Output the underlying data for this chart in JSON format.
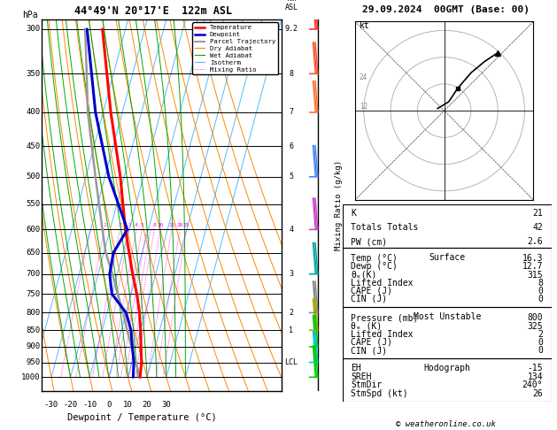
{
  "title_left": "44°49'N 20°17'E  122m ASL",
  "title_right": "29.09.2024  00GMT (Base: 00)",
  "xlabel": "Dewpoint / Temperature (°C)",
  "pressure_levels": [
    300,
    350,
    400,
    450,
    500,
    550,
    600,
    650,
    700,
    750,
    800,
    850,
    900,
    950,
    1000
  ],
  "temp_profile": {
    "pressure": [
      1000,
      950,
      900,
      850,
      800,
      750,
      700,
      600,
      500,
      400,
      300
    ],
    "temp": [
      16.3,
      15.0,
      12.5,
      10.0,
      7.0,
      3.0,
      -2.0,
      -12.0,
      -22.0,
      -36.0,
      -52.0
    ],
    "color": "#ff0000",
    "linewidth": 2.2
  },
  "dewp_profile": {
    "pressure": [
      1000,
      950,
      900,
      850,
      800,
      750,
      700,
      650,
      600,
      500,
      400,
      300
    ],
    "temp": [
      12.7,
      11.0,
      8.0,
      5.0,
      0.0,
      -10.0,
      -14.0,
      -15.0,
      -11.0,
      -28.0,
      -44.0,
      -60.0
    ],
    "color": "#0000cc",
    "linewidth": 2.2
  },
  "parcel_profile": {
    "pressure": [
      1000,
      950,
      900,
      850,
      800,
      750,
      700,
      650,
      600,
      500,
      400,
      350,
      300
    ],
    "temp": [
      16.3,
      12.0,
      7.5,
      3.0,
      -1.5,
      -7.0,
      -12.5,
      -19.0,
      -24.0,
      -35.0,
      -48.0,
      -54.0,
      -61.0
    ],
    "color": "#999999",
    "linewidth": 1.8
  },
  "lcl_pressure": 955,
  "info_box": {
    "K": 21,
    "Totals_Totals": 42,
    "PW_cm": 2.6,
    "Surface_Temp": 16.3,
    "Surface_Dewp": 12.7,
    "Surface_ThetaE": 315,
    "Surface_LiftedIndex": 8,
    "Surface_CAPE": 0,
    "Surface_CIN": 0,
    "MU_Pressure": 800,
    "MU_ThetaE": 325,
    "MU_LiftedIndex": 2,
    "MU_CAPE": 0,
    "MU_CIN": 0,
    "EH": -15,
    "SREH": 134,
    "StmDir": 240,
    "StmSpd": 26
  },
  "wind_barbs_pressure": [
    300,
    350,
    400,
    500,
    600,
    700,
    800,
    850,
    900,
    950,
    1000
  ],
  "wind_barbs_colors": [
    "#ff4444",
    "#ff6644",
    "#ff8844",
    "#4488ff",
    "#aa44ff",
    "#00aaaa",
    "#888888",
    "#888888",
    "#00aa00",
    "#00aa00",
    "#00cc00"
  ],
  "km_pressures": [
    350,
    400,
    450,
    500,
    600,
    700,
    800,
    850,
    950
  ],
  "km_values": [
    8,
    7,
    6,
    5,
    4,
    3,
    2,
    1,
    "LCL"
  ],
  "hodograph_u": [
    -3,
    2,
    6,
    12,
    18,
    24
  ],
  "hodograph_v": [
    1,
    4,
    10,
    17,
    22,
    26
  ]
}
